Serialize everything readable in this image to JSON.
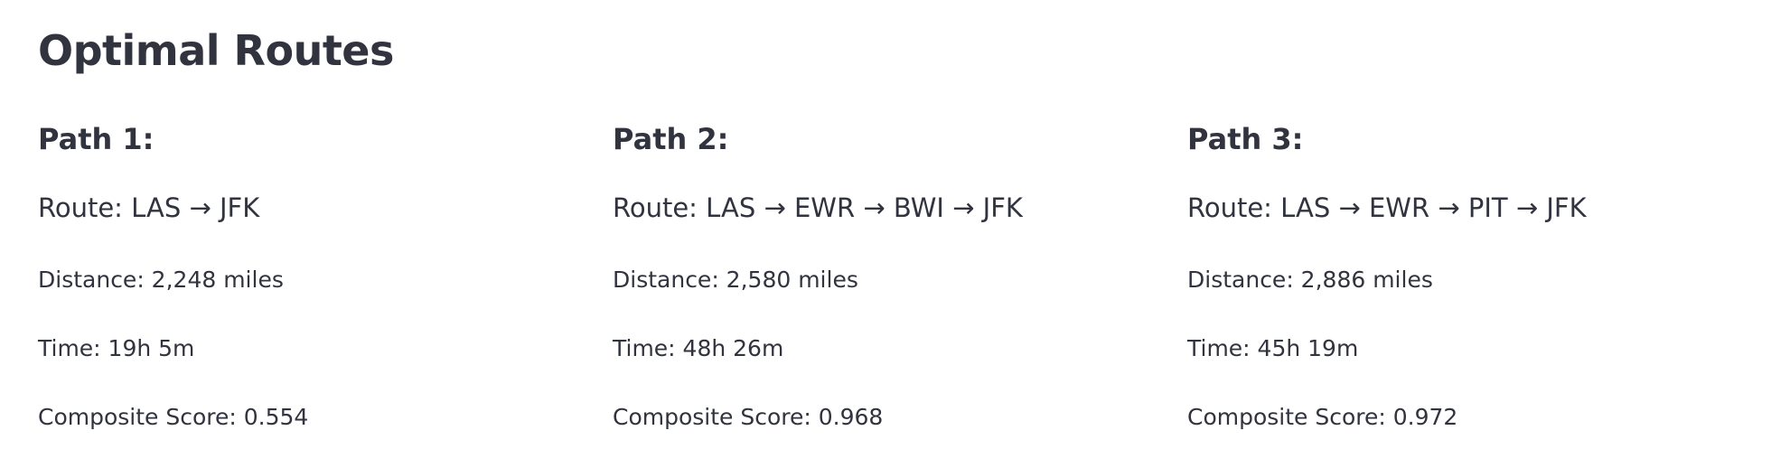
{
  "page": {
    "title": "Optimal Routes"
  },
  "paths": [
    {
      "heading": "Path 1:",
      "route": "Route: LAS → JFK",
      "distance": "Distance: 2,248 miles",
      "time": "Time: 19h 5m",
      "score": "Composite Score: 0.554"
    },
    {
      "heading": "Path 2:",
      "route": "Route: LAS → EWR → BWI → JFK",
      "distance": "Distance: 2,580 miles",
      "time": "Time: 48h 26m",
      "score": "Composite Score: 0.968"
    },
    {
      "heading": "Path 3:",
      "route": "Route: LAS → EWR → PIT → JFK",
      "distance": "Distance: 2,886 miles",
      "time": "Time: 45h 19m",
      "score": "Composite Score: 0.972"
    }
  ],
  "colors": {
    "text": "#31333f",
    "background": "#ffffff"
  }
}
